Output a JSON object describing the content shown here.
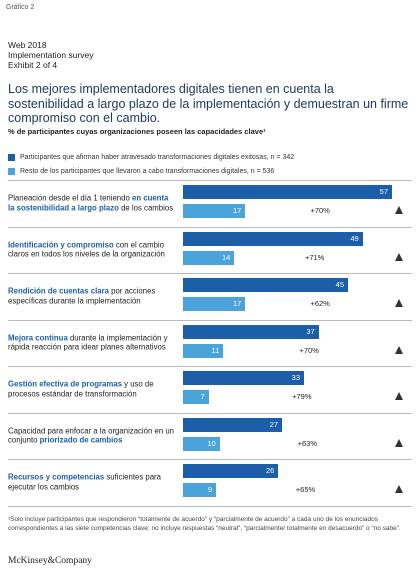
{
  "graphic_label": "Gráfico 2",
  "header": [
    "Web 2018",
    "Implementation survey",
    "Exhibit 2 of 4"
  ],
  "chart_data": {
    "type": "bar",
    "orientation": "horizontal",
    "title": "Los mejores implementadores digitales tienen en cuenta la sostenibilidad a largo plazo de la implementación y demuestran un firme compromiso con el cambio.",
    "subtitle": "% de participantes cuyas organizaciones poseen las capacidades clave¹",
    "categories": [
      [
        {
          "text": "Planeación desde el día 1 teniendo "
        },
        {
          "text": "en cuenta la sostenibilidad a largo plazo",
          "bold": true
        },
        {
          "text": " de los cambios"
        }
      ],
      [
        {
          "text": "Identificación y compromiso",
          "bold": true
        },
        {
          "text": " con el cambio claros en todos los niveles de la organización"
        }
      ],
      [
        {
          "text": "Rendición de cuentas clara",
          "bold": true
        },
        {
          "text": " por acciones específicas durante la implementación"
        }
      ],
      [
        {
          "text": "Mejora continua",
          "bold": true
        },
        {
          "text": " durante la implementación y rápida reacción para idear planes alternativos"
        }
      ],
      [
        {
          "text": "Gestión efectiva de programas",
          "bold": true
        },
        {
          "text": " y uso de procesos estándar de transformación"
        }
      ],
      [
        {
          "text": "Capacidad para enfocar a la organización en un conjunto "
        },
        {
          "text": "priorizado de cambios",
          "bold": true
        }
      ],
      [
        {
          "text": "Recursos y competencias",
          "bold": true
        },
        {
          "text": " suficientes para ejecutar los cambios"
        }
      ]
    ],
    "series": [
      {
        "name": "Participantes que afirman haber atravesado transformaciones digitales exitosas, n = 342",
        "color": "#1d5ea8",
        "values": [
          57,
          49,
          45,
          37,
          33,
          27,
          26
        ]
      },
      {
        "name": "Resto de los participantes que llevaron a cabo transformaciones digitales, n = 536",
        "color": "#4ba3db",
        "values": [
          17,
          14,
          17,
          11,
          7,
          10,
          9
        ]
      }
    ],
    "increase": [
      70,
      71,
      62,
      70,
      79,
      63,
      65
    ],
    "increase_labels": [
      "+70%",
      "+71%",
      "+62%",
      "+70%",
      "+79%",
      "+63%",
      "+65%"
    ],
    "xlim": [
      0,
      60
    ]
  },
  "footnote": "¹Solo incluye participantes que respondieron “totalmente de acuerdo” y “parcialmente de acuerdo” a cada uno de los enunciados correspondientes a las siete competencias clave; no incluye respuestas “neutral”, “parcialmente/ totalmente en desacuerdo” o “no sabe”.",
  "logo": "McKinsey&Company"
}
